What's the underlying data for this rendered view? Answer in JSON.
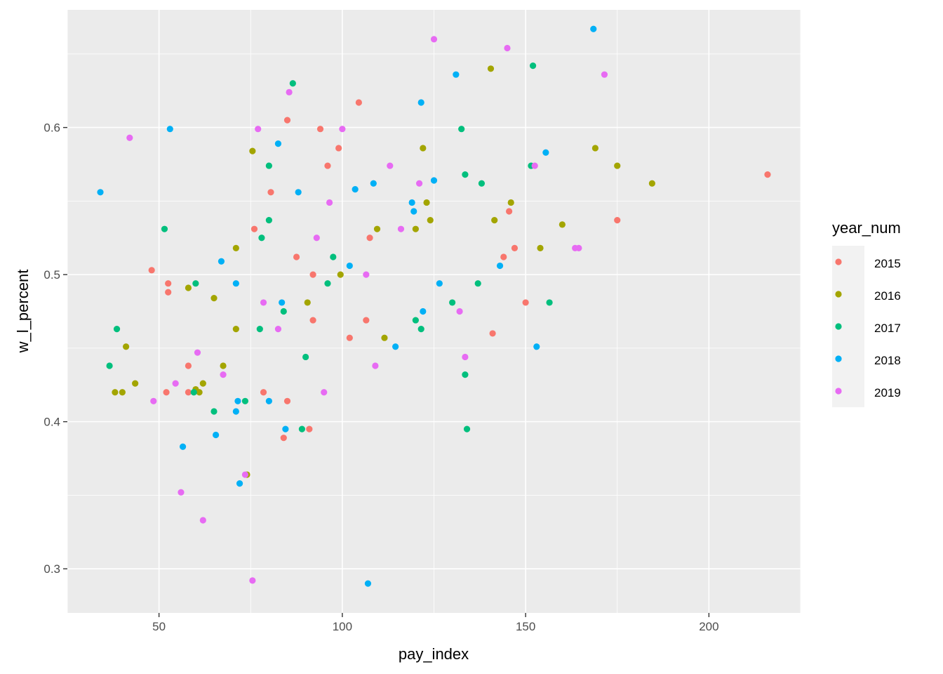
{
  "chart_data": {
    "type": "scatter",
    "xlabel": "pay_index",
    "ylabel": "w_l_percent",
    "xlim": [
      25,
      225
    ],
    "ylim": [
      0.27,
      0.68
    ],
    "x_ticks": [
      50,
      100,
      150,
      200
    ],
    "x_tick_labels": [
      "50",
      "100",
      "150",
      "200"
    ],
    "y_ticks": [
      0.3,
      0.4,
      0.5,
      0.6
    ],
    "y_tick_labels": [
      "0.3",
      "0.4",
      "0.5",
      "0.6"
    ],
    "grid": true,
    "legend": {
      "title": "year_num",
      "position": "right"
    },
    "series": [
      {
        "name": "2015",
        "color": "#F8766D",
        "points": [
          [
            48,
            0.503
          ],
          [
            52.5,
            0.494
          ],
          [
            52.5,
            0.488
          ],
          [
            52,
            0.42
          ],
          [
            58,
            0.438
          ],
          [
            58,
            0.42
          ],
          [
            76,
            0.531
          ],
          [
            78.5,
            0.42
          ],
          [
            80.5,
            0.556
          ],
          [
            84,
            0.389
          ],
          [
            85,
            0.414
          ],
          [
            85,
            0.605
          ],
          [
            87.5,
            0.512
          ],
          [
            91,
            0.395
          ],
          [
            92,
            0.5
          ],
          [
            92,
            0.469
          ],
          [
            94,
            0.599
          ],
          [
            96,
            0.574
          ],
          [
            99,
            0.586
          ],
          [
            102,
            0.457
          ],
          [
            104.5,
            0.617
          ],
          [
            106.5,
            0.469
          ],
          [
            107.5,
            0.525
          ],
          [
            141,
            0.46
          ],
          [
            144,
            0.512
          ],
          [
            145.5,
            0.543
          ],
          [
            147,
            0.518
          ],
          [
            150,
            0.481
          ],
          [
            175,
            0.537
          ],
          [
            216,
            0.568
          ]
        ]
      },
      {
        "name": "2016",
        "color": "#A3A500",
        "points": [
          [
            38,
            0.42
          ],
          [
            40,
            0.42
          ],
          [
            41,
            0.451
          ],
          [
            43.5,
            0.426
          ],
          [
            58,
            0.491
          ],
          [
            60,
            0.422
          ],
          [
            61,
            0.42
          ],
          [
            62,
            0.426
          ],
          [
            65,
            0.484
          ],
          [
            67.5,
            0.438
          ],
          [
            71,
            0.518
          ],
          [
            71,
            0.463
          ],
          [
            74,
            0.364
          ],
          [
            75.5,
            0.584
          ],
          [
            90.5,
            0.481
          ],
          [
            99.5,
            0.5
          ],
          [
            109.5,
            0.531
          ],
          [
            111.5,
            0.457
          ],
          [
            120,
            0.531
          ],
          [
            122,
            0.586
          ],
          [
            123,
            0.549
          ],
          [
            124,
            0.537
          ],
          [
            140.5,
            0.64
          ],
          [
            141.5,
            0.537
          ],
          [
            146,
            0.549
          ],
          [
            154,
            0.518
          ],
          [
            160,
            0.534
          ],
          [
            169,
            0.586
          ],
          [
            175,
            0.574
          ],
          [
            184.5,
            0.562
          ]
        ]
      },
      {
        "name": "2017",
        "color": "#00BF7D",
        "points": [
          [
            36.5,
            0.438
          ],
          [
            38.5,
            0.463
          ],
          [
            51.5,
            0.531
          ],
          [
            59.5,
            0.42
          ],
          [
            60,
            0.494
          ],
          [
            65,
            0.407
          ],
          [
            73.5,
            0.414
          ],
          [
            77.5,
            0.463
          ],
          [
            78,
            0.525
          ],
          [
            80,
            0.574
          ],
          [
            80,
            0.537
          ],
          [
            84,
            0.475
          ],
          [
            86.5,
            0.63
          ],
          [
            89,
            0.395
          ],
          [
            90,
            0.444
          ],
          [
            96,
            0.494
          ],
          [
            97.5,
            0.512
          ],
          [
            120,
            0.469
          ],
          [
            121.5,
            0.463
          ],
          [
            130,
            0.481
          ],
          [
            132.5,
            0.599
          ],
          [
            133.5,
            0.568
          ],
          [
            133.5,
            0.432
          ],
          [
            134,
            0.395
          ],
          [
            137,
            0.494
          ],
          [
            138,
            0.562
          ],
          [
            151.5,
            0.574
          ],
          [
            152,
            0.642
          ],
          [
            156.5,
            0.481
          ]
        ]
      },
      {
        "name": "2018",
        "color": "#00B0F6",
        "points": [
          [
            34,
            0.556
          ],
          [
            53,
            0.599
          ],
          [
            56.5,
            0.383
          ],
          [
            65.5,
            0.391
          ],
          [
            67,
            0.509
          ],
          [
            71,
            0.494
          ],
          [
            71,
            0.407
          ],
          [
            71.5,
            0.414
          ],
          [
            72,
            0.358
          ],
          [
            80,
            0.414
          ],
          [
            82.5,
            0.589
          ],
          [
            83.5,
            0.481
          ],
          [
            84.5,
            0.395
          ],
          [
            88,
            0.556
          ],
          [
            102,
            0.506
          ],
          [
            103.5,
            0.558
          ],
          [
            107,
            0.29
          ],
          [
            108.5,
            0.562
          ],
          [
            114.5,
            0.451
          ],
          [
            119,
            0.549
          ],
          [
            119.5,
            0.543
          ],
          [
            121.5,
            0.617
          ],
          [
            122,
            0.475
          ],
          [
            125,
            0.564
          ],
          [
            126.5,
            0.494
          ],
          [
            131,
            0.636
          ],
          [
            143,
            0.506
          ],
          [
            153,
            0.451
          ],
          [
            155.5,
            0.583
          ],
          [
            168.5,
            0.667
          ]
        ]
      },
      {
        "name": "2019",
        "color": "#E76BF3",
        "points": [
          [
            42,
            0.593
          ],
          [
            48.5,
            0.414
          ],
          [
            54.5,
            0.426
          ],
          [
            56,
            0.352
          ],
          [
            60.5,
            0.447
          ],
          [
            62,
            0.333
          ],
          [
            67.5,
            0.432
          ],
          [
            73.5,
            0.364
          ],
          [
            75.5,
            0.292
          ],
          [
            77,
            0.599
          ],
          [
            78.5,
            0.481
          ],
          [
            82.5,
            0.463
          ],
          [
            85.5,
            0.624
          ],
          [
            93,
            0.525
          ],
          [
            95,
            0.42
          ],
          [
            96.5,
            0.549
          ],
          [
            100,
            0.599
          ],
          [
            106.5,
            0.5
          ],
          [
            109,
            0.438
          ],
          [
            113,
            0.574
          ],
          [
            116,
            0.531
          ],
          [
            121,
            0.562
          ],
          [
            125,
            0.66
          ],
          [
            132,
            0.475
          ],
          [
            133.5,
            0.444
          ],
          [
            145,
            0.654
          ],
          [
            152.5,
            0.574
          ],
          [
            163.5,
            0.518
          ],
          [
            164.5,
            0.518
          ],
          [
            171.5,
            0.636
          ]
        ]
      }
    ]
  }
}
